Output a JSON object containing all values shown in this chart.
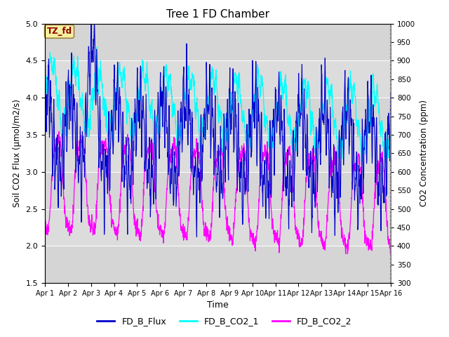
{
  "title": "Tree 1 FD Chamber",
  "xlabel": "Time",
  "ylabel_left": "Soil CO2 Flux (μmol/m2/s)",
  "ylabel_right": "CO2 Concentration (ppm)",
  "ylim_left": [
    1.5,
    5.0
  ],
  "ylim_right": [
    300,
    1000
  ],
  "xtick_labels": [
    "Apr 1",
    "Apr 2",
    "Apr 3",
    "Apr 4",
    "Apr 5",
    "Apr 6",
    "Apr 7",
    "Apr 8",
    "Apr 9",
    "Apr 10",
    "Apr 11",
    "Apr 12",
    "Apr 13",
    "Apr 14",
    "Apr 15",
    "Apr 16"
  ],
  "colors": {
    "FD_B_Flux": "#0000CD",
    "FD_B_CO2_1": "#00FFFF",
    "FD_B_CO2_2": "#FF00FF"
  },
  "legend_labels": [
    "FD_B_Flux",
    "FD_B_CO2_1",
    "FD_B_CO2_2"
  ],
  "annotation_text": "TZ_fd",
  "bg_color": "#DCDCDC",
  "stripe_color": "#C8C8C8",
  "grid_color": "#F0F0F0",
  "n_days": 15,
  "points_per_day": 96
}
